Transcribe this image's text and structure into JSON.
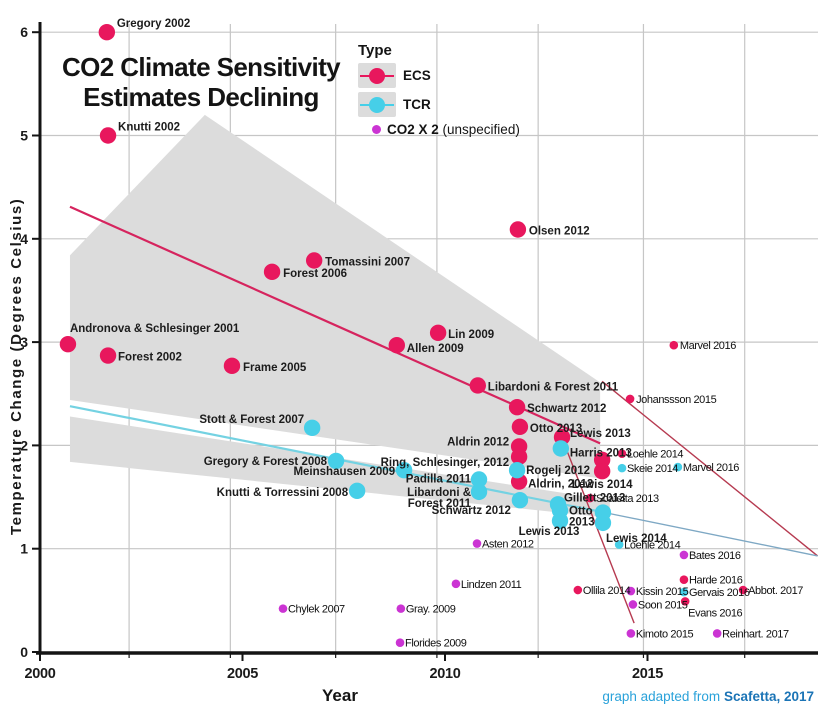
{
  "chart_data": {
    "type": "scatter",
    "title_lines": [
      "CO2 Climate Sensitivity",
      "Estimates Declining"
    ],
    "xlabel": "Year",
    "ylabel": "Temperature Change (Degrees Celsius)",
    "xlim": [
      2000,
      2019.2
    ],
    "ylim": [
      0,
      6.1
    ],
    "xticks": [
      2000,
      2005,
      2010,
      2015
    ],
    "yticks": [
      0,
      1,
      2,
      3,
      4,
      5,
      6
    ],
    "grid_vyears": [
      2002.2,
      2004.7,
      2007.3,
      2009.8,
      2012.3,
      2014.9,
      2017.4
    ],
    "grid_on": true,
    "legend_position": "top-center",
    "colors": {
      "ecs": "#e8175d",
      "tcr": "#46cfe8",
      "co2x2": "#cb34d3",
      "band": "#dcdcdc",
      "grid": "#c6c6c6",
      "axis": "#141414",
      "ecs_line": "#d6245e",
      "tcr_line": "#74d2e2",
      "fan_line": "#b63a50",
      "tcr_fan": "#7ea8c4",
      "caption_light": "#2aa2da",
      "caption_dark": "#1b74b6"
    },
    "legend": {
      "title": "Type",
      "items": [
        {
          "label": "ECS",
          "series": "ecs"
        },
        {
          "label": "TCR",
          "series": "tcr"
        },
        {
          "label": "CO2 X 2",
          "suffix": " (unspecified)",
          "series": "co2x2"
        }
      ]
    },
    "caption": {
      "prefix": "graph adapted from ",
      "source": "Scafetta, 2017"
    },
    "bands": [
      {
        "series": "ecs",
        "points": [
          [
            2004.07,
            5.2
          ],
          [
            2013.83,
            2.61
          ],
          [
            2013.83,
            1.68
          ],
          [
            2000.74,
            2.44
          ],
          [
            2000.74,
            3.84
          ]
        ]
      },
      {
        "series": "tcr",
        "points": [
          [
            2000.74,
            2.28
          ],
          [
            2014.07,
            1.47
          ],
          [
            2014.07,
            1.3
          ],
          [
            2000.74,
            1.84
          ]
        ]
      }
    ],
    "trend_lines": [
      {
        "name": "ecs-trend",
        "points": [
          [
            2000.74,
            4.31
          ],
          [
            2013.83,
            2.02
          ]
        ],
        "color_key": "ecs_line",
        "width": 2.2
      },
      {
        "name": "ecs-fan-steep",
        "points": [
          [
            2012.89,
            2.07
          ],
          [
            2014.67,
            0.28
          ]
        ],
        "color_key": "fan_line",
        "width": 1.4
      },
      {
        "name": "ecs-fan-long",
        "points": [
          [
            2013.88,
            2.62
          ],
          [
            2019.2,
            0.93
          ]
        ],
        "color_key": "fan_line",
        "width": 1.4
      },
      {
        "name": "tcr-trend",
        "points": [
          [
            2000.74,
            2.38
          ],
          [
            2014.07,
            1.34
          ]
        ],
        "color_key": "tcr_line",
        "width": 2.2
      },
      {
        "name": "tcr-fan",
        "points": [
          [
            2014.07,
            1.34
          ],
          [
            2019.2,
            0.93
          ]
        ],
        "color_key": "tcr_fan",
        "width": 1.3
      }
    ],
    "series": [
      {
        "name": "ECS",
        "key": "ecs",
        "points": [
          {
            "label": "Gregory 2002",
            "year": 2001.65,
            "value": 6.0,
            "size": "big",
            "dx": 10,
            "dy": -5
          },
          {
            "label": "Knutti 2002",
            "year": 2001.68,
            "value": 5.0,
            "size": "big",
            "dx": 10,
            "dy": -5
          },
          {
            "label": "Andronova & Schlesinger 2001",
            "year": 2000.69,
            "value": 2.98,
            "size": "big",
            "dx": 2,
            "dy": -12
          },
          {
            "label": "Forest 2002",
            "year": 2001.68,
            "value": 2.87,
            "size": "big",
            "dx": 10,
            "dy": 5
          },
          {
            "label": "Frame 2005",
            "year": 2004.74,
            "value": 2.77,
            "size": "big",
            "dx": 11,
            "dy": 5
          },
          {
            "label": "Forest 2006",
            "year": 2005.73,
            "value": 3.68,
            "size": "big",
            "dx": 11,
            "dy": 5
          },
          {
            "label": "Tomassini 2007",
            "year": 2006.77,
            "value": 3.79,
            "size": "big",
            "dx": 11,
            "dy": 5
          },
          {
            "label": "Olsen 2012",
            "year": 2011.8,
            "value": 4.09,
            "size": "big",
            "dx": 11,
            "dy": 5
          },
          {
            "label": "Lin 2009",
            "year": 2009.83,
            "value": 3.09,
            "size": "big",
            "dx": 10,
            "dy": 5
          },
          {
            "label": "Allen 2009",
            "year": 2008.81,
            "value": 2.97,
            "size": "big",
            "dx": 10,
            "dy": 7
          },
          {
            "label": "Libardoni & Forest 2011",
            "year": 2010.81,
            "value": 2.58,
            "size": "big",
            "dx": 10,
            "dy": 5
          },
          {
            "label": "Schwartz 2012",
            "year": 2011.78,
            "value": 2.37,
            "size": "big",
            "dx": 10,
            "dy": 5
          },
          {
            "label": "Otto 2013",
            "year": 2011.85,
            "value": 2.18,
            "size": "big",
            "dx": 10,
            "dy": 5
          },
          {
            "label": "Lewis 2013",
            "year": 2012.89,
            "value": 2.08,
            "size": "big",
            "dx": 8,
            "dy": 0
          },
          {
            "label": "Aldrin 2012",
            "year": 2011.83,
            "value": 1.99,
            "size": "big",
            "dx": -10,
            "dy": -1,
            "anchor": "end"
          },
          {
            "label": "Ring, Schlesinger, 2012",
            "year": 2011.83,
            "value": 1.89,
            "size": "big",
            "dx": -10,
            "dy": 9,
            "anchor": "end"
          },
          {
            "label": "Aldrin, 2012",
            "year": 2011.83,
            "value": 1.65,
            "size": "big",
            "dx": 9,
            "dy": 6
          },
          {
            "label": "",
            "year": 2013.88,
            "value": 1.86,
            "size": "big",
            "dx": 0,
            "dy": 0
          },
          {
            "label": "Lewis 2014",
            "year": 2013.88,
            "value": 1.75,
            "size": "big",
            "dx": 0,
            "dy": 17,
            "anchor": "middle"
          },
          {
            "label": "Scafetta 2013",
            "year": 2013.58,
            "value": 1.49,
            "size": "small",
            "dx": 6,
            "dy": 4
          },
          {
            "label": "Loehle 2014",
            "year": 2014.37,
            "value": 1.92,
            "size": "small",
            "dx": 5,
            "dy": 4
          },
          {
            "label": "Johanssson 2015",
            "year": 2014.57,
            "value": 2.45,
            "size": "small",
            "dx": 6,
            "dy": 4
          },
          {
            "label": "Marvel 2016",
            "year": 2015.65,
            "value": 2.97,
            "size": "small",
            "dx": 6,
            "dy": 4
          },
          {
            "label": "Ollila 2014",
            "year": 2013.28,
            "value": 0.6,
            "size": "small",
            "dx": 5,
            "dy": 4
          },
          {
            "label": "Harde 2016",
            "year": 2015.9,
            "value": 0.7,
            "size": "small",
            "dx": 5,
            "dy": 4
          },
          {
            "label": "Evans 2016",
            "year": 2015.93,
            "value": 0.49,
            "size": "small",
            "dx": 3,
            "dy": 15
          },
          {
            "label": "Abbot. 2017",
            "year": 2017.36,
            "value": 0.6,
            "size": "small",
            "dx": 5,
            "dy": 4
          }
        ]
      },
      {
        "name": "TCR",
        "key": "tcr",
        "points": [
          {
            "label": "Stott & Forest 2007",
            "year": 2006.72,
            "value": 2.17,
            "size": "big",
            "dx": -8,
            "dy": -5,
            "anchor": "end"
          },
          {
            "label": "Gregory & Forest 2008",
            "year": 2007.31,
            "value": 1.85,
            "size": "big",
            "dx": -9,
            "dy": 4,
            "anchor": "end"
          },
          {
            "label": "Meinshausen 2009",
            "year": 2008.99,
            "value": 1.76,
            "size": "big",
            "dx": -9,
            "dy": 5,
            "anchor": "end"
          },
          {
            "label": "Knutti & Torressini 2008",
            "year": 2007.83,
            "value": 1.56,
            "size": "big",
            "dx": -9,
            "dy": 5,
            "anchor": "end"
          },
          {
            "label": "Padilla 2011",
            "year": 2010.84,
            "value": 1.67,
            "size": "big",
            "dx": -8,
            "dy": 3,
            "anchor": "end"
          },
          {
            "label": "Libardoni & Forest 2011",
            "year": 2010.84,
            "value": 1.55,
            "size": "big",
            "dx": -8,
            "dy": 4,
            "anchor": "end",
            "lines": [
              "Libardoni &",
              "Forest 2011"
            ]
          },
          {
            "label": "Rogelj 2012",
            "year": 2011.78,
            "value": 1.76,
            "size": "big",
            "dx": 9,
            "dy": 4
          },
          {
            "label": "Harris 2013",
            "year": 2012.86,
            "value": 1.97,
            "size": "big",
            "dx": 9,
            "dy": 8
          },
          {
            "label": "Schwartz 2012",
            "year": 2011.85,
            "value": 1.47,
            "size": "big",
            "dx": -9,
            "dy": 14,
            "anchor": "end"
          },
          {
            "label": "Gillett 2013",
            "year": 2012.79,
            "value": 1.43,
            "size": "big",
            "dx": 6,
            "dy": -3
          },
          {
            "label": "Otto 2013",
            "year": 2012.84,
            "value": 1.37,
            "size": "big",
            "dx": 9,
            "dy": 4,
            "lines": [
              "Otto",
              "2013"
            ]
          },
          {
            "label": "Lewis 2013",
            "year": 2012.84,
            "value": 1.27,
            "size": "big",
            "dx": -11,
            "dy": 14,
            "anchor": "middle"
          },
          {
            "label": "",
            "year": 2013.9,
            "value": 1.35,
            "size": "big",
            "dx": 0,
            "dy": 0
          },
          {
            "label": "Lewis 2014",
            "year": 2013.9,
            "value": 1.25,
            "size": "big",
            "dx": 3,
            "dy": 19
          },
          {
            "label": "Skeie 2014",
            "year": 2014.37,
            "value": 1.78,
            "size": "small",
            "dx": 5,
            "dy": 4
          },
          {
            "label": "Marvel 2016",
            "year": 2015.75,
            "value": 1.79,
            "size": "small",
            "dx": 5,
            "dy": 4
          },
          {
            "label": "Gervais 2016",
            "year": 2015.9,
            "value": 0.58,
            "size": "small",
            "dx": 5,
            "dy": 4
          },
          {
            "label": "Loehle 2014",
            "year": 2014.3,
            "value": 1.04,
            "size": "small",
            "dx": 5,
            "dy": 4
          }
        ]
      },
      {
        "name": "CO2 X 2 (unspecified)",
        "key": "co2x2",
        "points": [
          {
            "label": "Asten 2012",
            "year": 2010.79,
            "value": 1.05,
            "size": "small",
            "dx": 5,
            "dy": 4
          },
          {
            "label": "Lindzen 2011",
            "year": 2010.27,
            "value": 0.66,
            "size": "small",
            "dx": 5,
            "dy": 4
          },
          {
            "label": "Chylek 2007",
            "year": 2006.0,
            "value": 0.42,
            "size": "small",
            "dx": 5,
            "dy": 4
          },
          {
            "label": "Gray. 2009",
            "year": 2008.91,
            "value": 0.42,
            "size": "small",
            "dx": 5,
            "dy": 4
          },
          {
            "label": "Florides 2009",
            "year": 2008.89,
            "value": 0.09,
            "size": "small",
            "dx": 5,
            "dy": 4
          },
          {
            "label": "Kissin 2015",
            "year": 2014.59,
            "value": 0.59,
            "size": "small",
            "dx": 5,
            "dy": 4
          },
          {
            "label": "Soon 2015",
            "year": 2014.64,
            "value": 0.46,
            "size": "small",
            "dx": 5,
            "dy": 4
          },
          {
            "label": "Kimoto 2015",
            "year": 2014.59,
            "value": 0.18,
            "size": "small",
            "dx": 5,
            "dy": 4
          },
          {
            "label": "Bates 2016",
            "year": 2015.9,
            "value": 0.94,
            "size": "small",
            "dx": 5,
            "dy": 4
          },
          {
            "label": "Reinhart. 2017",
            "year": 2016.72,
            "value": 0.18,
            "size": "small",
            "dx": 5,
            "dy": 4
          }
        ]
      }
    ]
  }
}
